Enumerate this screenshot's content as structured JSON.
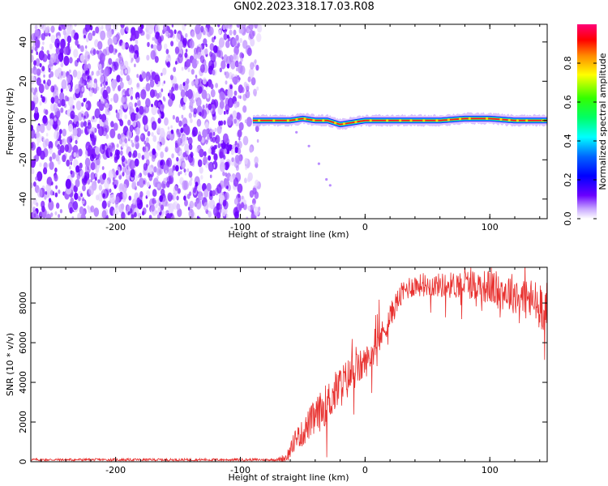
{
  "chart_data": [
    {
      "type": "heatmap",
      "title": "GN02.2023.318.17.03.R08",
      "xlabel": "Height of straight line (km)",
      "ylabel": "Frequency (Hz)",
      "xlim": [
        -268,
        146
      ],
      "ylim": [
        -50,
        49
      ],
      "xticks": [
        "-200",
        "-100",
        "0",
        "100"
      ],
      "yticks": [
        "-40",
        "-20",
        "0",
        "20",
        "40"
      ],
      "noise_region_x": [
        -268,
        -83
      ],
      "signal_band": {
        "x_range": [
          -90,
          146
        ],
        "center_freq": [
          [
            -88,
            0
          ],
          [
            -60,
            0
          ],
          [
            -50,
            1
          ],
          [
            -40,
            0
          ],
          [
            -30,
            0
          ],
          [
            -20,
            -2
          ],
          [
            -10,
            -1
          ],
          [
            0,
            0
          ],
          [
            20,
            0
          ],
          [
            40,
            0
          ],
          [
            60,
            0
          ],
          [
            80,
            1
          ],
          [
            100,
            1
          ],
          [
            120,
            0
          ],
          [
            140,
            0
          ]
        ]
      },
      "curved_trace": [
        [
          -55,
          -6
        ],
        [
          -45,
          -13
        ],
        [
          -37,
          -22
        ],
        [
          -31,
          -30
        ],
        [
          -28,
          -33
        ]
      ],
      "colorbar": {
        "label": "Normalized spectral amplitude",
        "range": [
          0,
          1
        ],
        "ticks": [
          "0.0",
          "0.2",
          "0.4",
          "0.6",
          "0.8"
        ]
      },
      "grid": false
    },
    {
      "type": "line",
      "xlabel": "Height of straight line (km)",
      "ylabel": "SNR (10 * v/v)",
      "xlim": [
        -268,
        146
      ],
      "ylim": [
        0,
        9800
      ],
      "xticks": [
        "-200",
        "-100",
        "0",
        "100"
      ],
      "yticks": [
        "0",
        "2000",
        "4000",
        "6000",
        "8000"
      ],
      "series": [
        {
          "color": "#e8302e",
          "points": [
            [
              -268,
              100
            ],
            [
              -200,
              100
            ],
            [
              -150,
              100
            ],
            [
              -100,
              100
            ],
            [
              -70,
              100
            ],
            [
              -64,
              200
            ],
            [
              -60,
              500
            ],
            [
              -56,
              1200
            ],
            [
              -50,
              1400
            ],
            [
              -45,
              1900
            ],
            [
              -40,
              2200
            ],
            [
              -35,
              2600
            ],
            [
              -30,
              3000
            ],
            [
              -25,
              3400
            ],
            [
              -20,
              3800
            ],
            [
              -15,
              4100
            ],
            [
              -10,
              4500
            ],
            [
              -5,
              4700
            ],
            [
              0,
              5000
            ],
            [
              5,
              5400
            ],
            [
              10,
              6000
            ],
            [
              15,
              6600
            ],
            [
              20,
              7300
            ],
            [
              25,
              8000
            ],
            [
              30,
              8500
            ],
            [
              35,
              8800
            ],
            [
              40,
              8900
            ],
            [
              50,
              8900
            ],
            [
              60,
              8900
            ],
            [
              70,
              8900
            ],
            [
              80,
              9000
            ],
            [
              90,
              8900
            ],
            [
              100,
              8800
            ],
            [
              110,
              8600
            ],
            [
              120,
              8500
            ],
            [
              130,
              8200
            ],
            [
              140,
              7900
            ],
            [
              146,
              7800
            ]
          ],
          "noise_amplitude": [
            [
              -268,
              40
            ],
            [
              -70,
              40
            ],
            [
              -60,
              250
            ],
            [
              -40,
              600
            ],
            [
              -20,
              700
            ],
            [
              0,
              500
            ],
            [
              20,
              400
            ],
            [
              50,
              350
            ],
            [
              90,
              500
            ],
            [
              120,
              650
            ],
            [
              146,
              800
            ]
          ]
        }
      ],
      "grid": false
    }
  ]
}
